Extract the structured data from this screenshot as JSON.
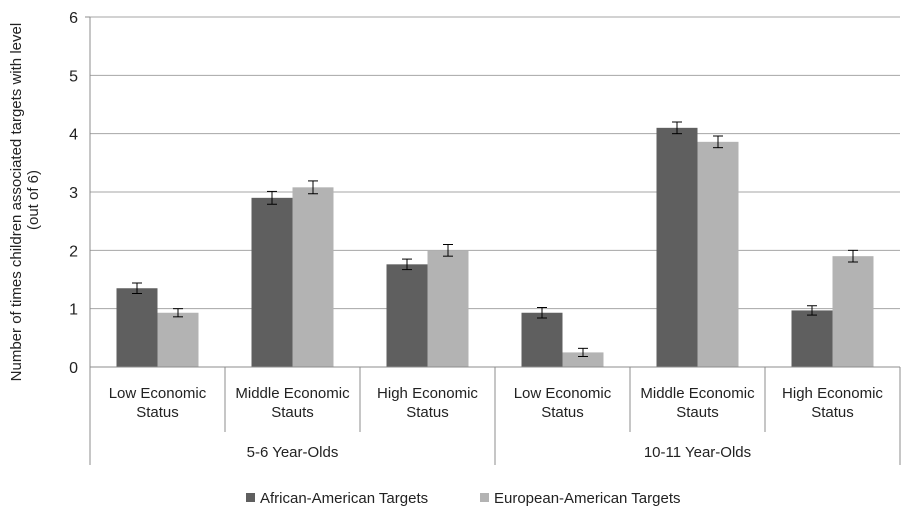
{
  "chart_data": {
    "type": "bar",
    "ylabel_lines": [
      "Number of times children associated targets with level",
      "(out of 6)"
    ],
    "ylim": [
      0,
      6
    ],
    "yticks": [
      0,
      1,
      2,
      3,
      4,
      5,
      6
    ],
    "grid": true,
    "legend_position": "bottom",
    "groups": [
      {
        "label": "5-6 Year-Olds",
        "categories": [
          {
            "label_lines": [
              "Low Economic",
              "Status"
            ]
          },
          {
            "label_lines": [
              "Middle Economic",
              "Stauts"
            ]
          },
          {
            "label_lines": [
              "High Economic",
              "Status"
            ]
          }
        ]
      },
      {
        "label": "10-11 Year-Olds",
        "categories": [
          {
            "label_lines": [
              "Low Economic",
              "Status"
            ]
          },
          {
            "label_lines": [
              "Middle Economic",
              "Stauts"
            ]
          },
          {
            "label_lines": [
              "High Economic",
              "Status"
            ]
          }
        ]
      }
    ],
    "series": [
      {
        "name": "African-American Targets",
        "color": "#5f5f5f",
        "values": [
          1.35,
          2.9,
          1.76,
          0.93,
          4.1,
          0.97
        ],
        "errors": [
          0.09,
          0.11,
          0.09,
          0.09,
          0.1,
          0.08
        ]
      },
      {
        "name": "European-American Targets",
        "color": "#b3b3b3",
        "values": [
          0.93,
          3.08,
          2.0,
          0.25,
          3.86,
          1.9
        ],
        "errors": [
          0.07,
          0.11,
          0.1,
          0.07,
          0.1,
          0.1
        ]
      }
    ]
  }
}
